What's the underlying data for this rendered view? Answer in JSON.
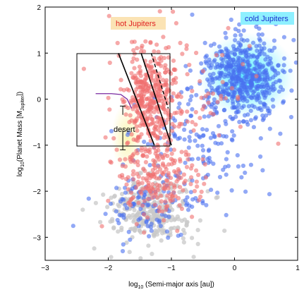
{
  "chart_data": {
    "type": "scatter",
    "xlabel_parts": [
      "log",
      "10",
      " (Semi-major axis [au])"
    ],
    "ylabel_parts": [
      "log",
      "10",
      "(Planet Mass [M",
      "Jupiter",
      "])"
    ],
    "xlim": [
      -3,
      1
    ],
    "ylim": [
      -3.5,
      2
    ],
    "x_ticks": [
      -3,
      -2,
      -1,
      0,
      1
    ],
    "y_ticks": [
      -3,
      -2,
      -1,
      0,
      1,
      2
    ],
    "x_tick_labels": [
      "−3",
      "−2",
      "−1",
      "0",
      "1"
    ],
    "y_tick_labels": [
      "−3",
      "−2",
      "−1",
      "0",
      "1",
      "2"
    ],
    "grid": false,
    "colors": {
      "hot": "#f07070",
      "cold": "#4a6ff0",
      "other": "#c8c8c8",
      "hot_label_bg": "#fbe3b4",
      "hot_label_text": "#e02020",
      "cold_label_bg": "#8ef0ff",
      "cold_label_text": "#1a2fd0",
      "cold_glow": "#33e6ff",
      "desert_glow": "#fbf5b0",
      "purple_curve": "#7a2aa0"
    },
    "annotations": {
      "hot_jupiters": "hot Jupiters",
      "cold_jupiters": "cold Jupiters",
      "desert": "desert"
    },
    "box": {
      "x": [
        -2.5,
        -1.0
      ],
      "y": [
        -1.0,
        1.0
      ]
    },
    "lines": [
      {
        "name": "left-boundary",
        "style": "solid",
        "points": [
          [
            -1.84,
            1.0
          ],
          [
            -1.27,
            -1.0
          ]
        ]
      },
      {
        "name": "right-boundary",
        "style": "solid",
        "points": [
          [
            -1.48,
            1.0
          ],
          [
            -1.0,
            -1.0
          ]
        ]
      },
      {
        "name": "dashed-boundary",
        "style": "dashed",
        "points": [
          [
            -1.32,
            1.0
          ],
          [
            -1.05,
            -0.2
          ]
        ]
      }
    ],
    "desert_bar": {
      "x": -1.77,
      "y": [
        -1.1,
        -0.15
      ]
    },
    "purple_curve": [
      [
        -2.2,
        0.12
      ],
      [
        -1.95,
        0.12
      ],
      [
        -1.8,
        0.1
      ],
      [
        -1.7,
        0.0
      ],
      [
        -1.63,
        -0.2
      ]
    ],
    "clusters": [
      {
        "name": "hot-core",
        "color": "hot",
        "n": 340,
        "cx": -1.35,
        "cy": 0.0,
        "sx": 0.18,
        "sy": 0.55,
        "seed": 11
      },
      {
        "name": "hot-low",
        "color": "hot",
        "n": 210,
        "cx": -1.25,
        "cy": -1.75,
        "sx": 0.33,
        "sy": 0.45,
        "seed": 23
      },
      {
        "name": "hot-spread",
        "color": "hot",
        "n": 120,
        "cx": -0.9,
        "cy": 0.1,
        "sx": 0.55,
        "sy": 0.9,
        "seed": 37
      },
      {
        "name": "cold-core",
        "color": "cold",
        "n": 520,
        "cx": 0.15,
        "cy": 0.5,
        "sx": 0.32,
        "sy": 0.48,
        "seed": 41
      },
      {
        "name": "cold-mid",
        "color": "cold",
        "n": 160,
        "cx": -0.6,
        "cy": -1.0,
        "sx": 0.5,
        "sy": 0.7,
        "seed": 53
      },
      {
        "name": "cold-low",
        "color": "cold",
        "n": 90,
        "cx": -1.5,
        "cy": -2.3,
        "sx": 0.4,
        "sy": 0.4,
        "seed": 61
      },
      {
        "name": "gray-low",
        "color": "other",
        "n": 300,
        "cx": -1.35,
        "cy": -2.4,
        "sx": 0.35,
        "sy": 0.35,
        "seed": 71
      }
    ]
  }
}
